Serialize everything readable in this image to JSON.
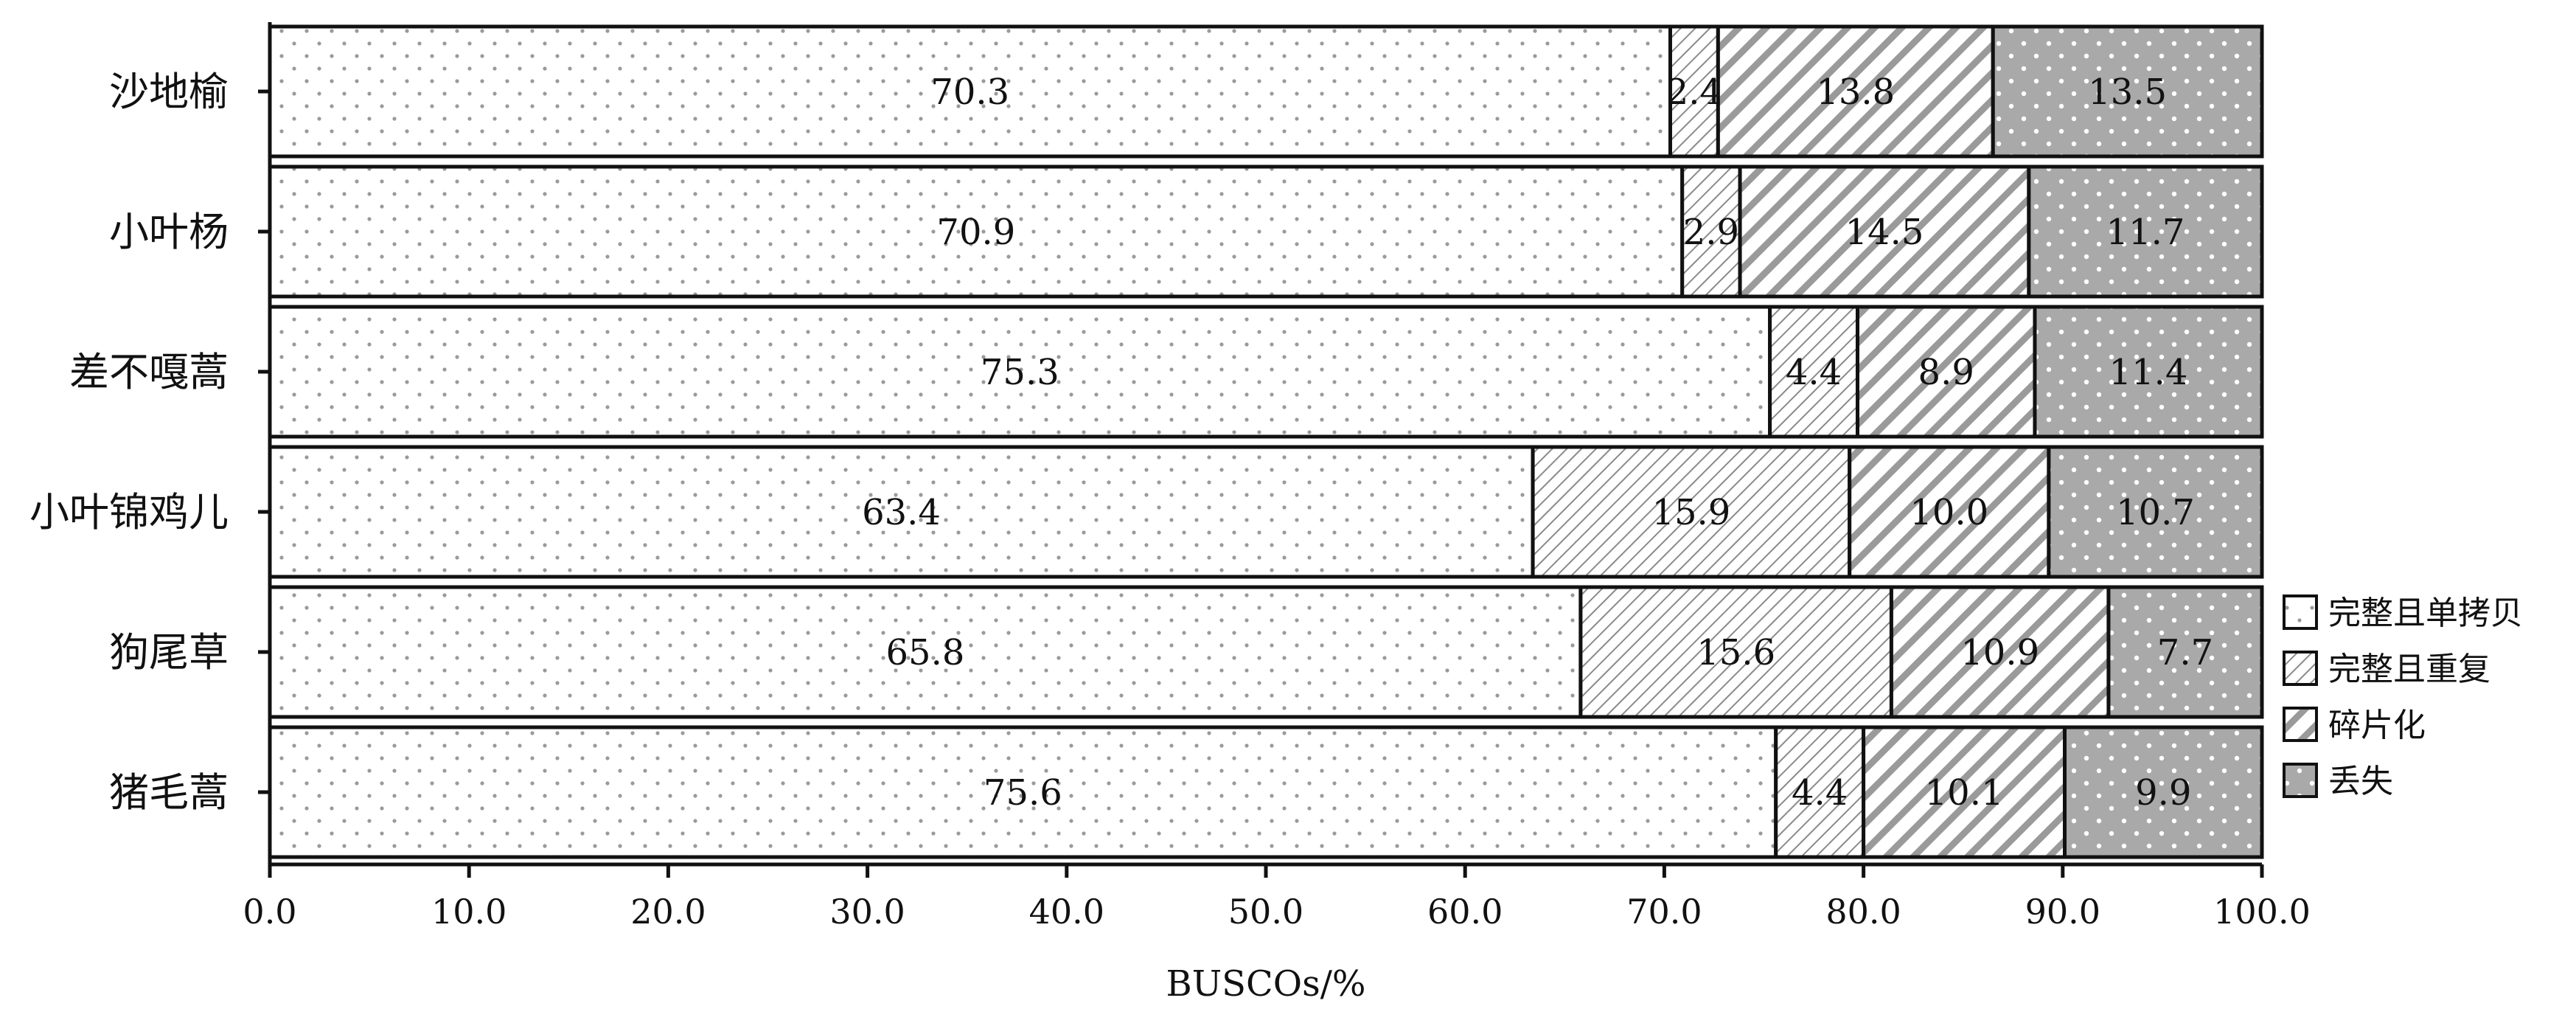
{
  "chart_data": {
    "type": "bar",
    "orientation": "horizontal",
    "stacked": true,
    "title": "",
    "xlabel": "BUSCOs/%",
    "ylabel": "",
    "xlim": [
      0,
      100
    ],
    "x_ticks": [
      "0.0",
      "10.0",
      "20.0",
      "30.0",
      "40.0",
      "50.0",
      "60.0",
      "70.0",
      "80.0",
      "90.0",
      "100.0"
    ],
    "categories": [
      "沙地榆",
      "小叶杨",
      "差不嘎蒿",
      "小叶锦鸡儿",
      "狗尾草",
      "猪毛蒿"
    ],
    "series": [
      {
        "name": "完整且单拷贝",
        "values": [
          70.3,
          70.9,
          75.3,
          63.4,
          65.8,
          75.6
        ],
        "labels": [
          "70.3",
          "70.9",
          "75.3",
          "63.4",
          "65.8",
          "75.6"
        ],
        "pattern": "dots-sparse"
      },
      {
        "name": "完整且重复",
        "values": [
          2.4,
          2.9,
          4.4,
          15.9,
          15.6,
          4.4
        ],
        "labels": [
          "2.4",
          "2.9",
          "4.4",
          "15.9",
          "15.6",
          "4.4"
        ],
        "pattern": "hatch-fine"
      },
      {
        "name": "碎片化",
        "values": [
          13.8,
          14.5,
          8.9,
          10.0,
          10.9,
          10.1
        ],
        "labels": [
          "13.8",
          "14.5",
          "8.9",
          "10.0",
          "10.9",
          "10.1"
        ],
        "pattern": "hatch-bold"
      },
      {
        "name": "丢失",
        "values": [
          13.5,
          11.7,
          11.4,
          10.7,
          7.7,
          9.9
        ],
        "labels": [
          "13.5",
          "11.7",
          "11.4",
          "10.7",
          "7.7",
          "9.9"
        ],
        "pattern": "gray-dots"
      }
    ],
    "grid": false,
    "legend_position": "right-bottom",
    "colors": {
      "stroke": "#111111",
      "dot": "#9a9a9a",
      "hatch": "#8a8a8a",
      "missing_fill": "#a9a9a9"
    }
  }
}
